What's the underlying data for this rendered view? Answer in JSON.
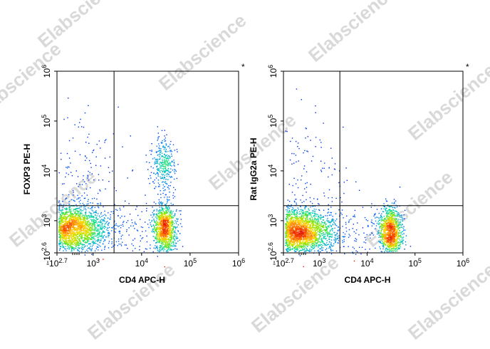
{
  "watermark": "Elabscience",
  "chart_data": [
    {
      "type": "scatter",
      "subtype": "flow-cytometry-density",
      "xlabel": "CD4 APC-H",
      "ylabel": "FOXP3 PE-H",
      "marker": "*",
      "x_scale": "biexponential",
      "y_scale": "biexponential",
      "xlim": [
        -501,
        1000000
      ],
      "ylim": [
        -398,
        1000000
      ],
      "x_ticks": [
        {
          "base": "-10",
          "exp": "2.7",
          "value": -501
        },
        {
          "base": "10",
          "exp": "3",
          "value": 1000
        },
        {
          "base": "10",
          "exp": "4",
          "value": 10000
        },
        {
          "base": "10",
          "exp": "5",
          "value": 100000
        },
        {
          "base": "10",
          "exp": "6",
          "value": 1000000
        }
      ],
      "y_ticks": [
        {
          "base": "-10",
          "exp": "2.6",
          "value": -398
        },
        {
          "base": "10",
          "exp": "3",
          "value": 1000
        },
        {
          "base": "10",
          "exp": "4",
          "value": 10000
        },
        {
          "base": "10",
          "exp": "5",
          "value": 100000
        },
        {
          "base": "10",
          "exp": "6",
          "value": 1000000
        }
      ],
      "gate": {
        "x": 2700,
        "y": 2000
      },
      "populations": [
        {
          "x_center": 300,
          "y_center": 700,
          "weight": 0.62
        },
        {
          "x_center": 30000,
          "y_center": 700,
          "weight": 0.26
        },
        {
          "x_center": 28000,
          "y_center": 14000,
          "weight": 0.08
        },
        {
          "x_center": 500,
          "y_center": 8000,
          "weight": 0.04
        }
      ]
    },
    {
      "type": "scatter",
      "subtype": "flow-cytometry-density",
      "xlabel": "CD4 APC-H",
      "ylabel": "Rat IgG2a PE-H",
      "marker": "*",
      "x_scale": "biexponential",
      "y_scale": "biexponential",
      "xlim": [
        -501,
        1000000
      ],
      "ylim": [
        -398,
        1000000
      ],
      "x_ticks": [
        {
          "base": "-10",
          "exp": "2.7",
          "value": -501
        },
        {
          "base": "10",
          "exp": "3",
          "value": 1000
        },
        {
          "base": "10",
          "exp": "4",
          "value": 10000
        },
        {
          "base": "10",
          "exp": "5",
          "value": 100000
        },
        {
          "base": "10",
          "exp": "6",
          "value": 1000000
        }
      ],
      "y_ticks": [
        {
          "base": "-10",
          "exp": "2.6",
          "value": -398
        },
        {
          "base": "10",
          "exp": "3",
          "value": 1000
        },
        {
          "base": "10",
          "exp": "4",
          "value": 10000
        },
        {
          "base": "10",
          "exp": "5",
          "value": 100000
        },
        {
          "base": "10",
          "exp": "6",
          "value": 1000000
        }
      ],
      "gate": {
        "x": 2700,
        "y": 2000
      },
      "populations": [
        {
          "x_center": 300,
          "y_center": 600,
          "weight": 0.7
        },
        {
          "x_center": 30000,
          "y_center": 600,
          "weight": 0.27
        },
        {
          "x_center": 600,
          "y_center": 8000,
          "weight": 0.03
        }
      ]
    }
  ]
}
